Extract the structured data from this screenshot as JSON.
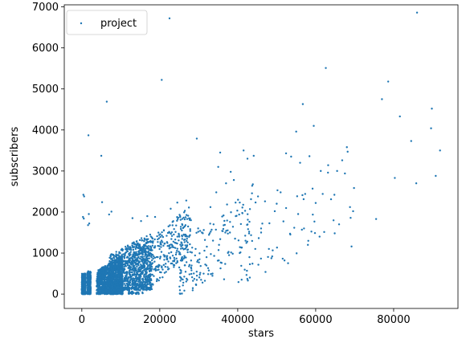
{
  "chart_data": {
    "type": "scatter",
    "title": "",
    "xlabel": "stars",
    "ylabel": "subscribers",
    "xlim": [
      -4500,
      96500
    ],
    "ylim": [
      -350,
      7050
    ],
    "xticks": [
      0,
      20000,
      40000,
      60000,
      80000
    ],
    "yticks": [
      0,
      1000,
      2000,
      3000,
      4000,
      5000,
      6000,
      7000
    ],
    "grid": false,
    "legend": {
      "position": "top-left"
    },
    "series": [
      {
        "name": "project",
        "color": "#1f77b4",
        "marker_size": 1.5,
        "points": [
          {
            "x": 400,
            "y": 2420
          },
          {
            "x": 600,
            "y": 2380
          },
          {
            "x": 300,
            "y": 1880
          },
          {
            "x": 500,
            "y": 1840
          },
          {
            "x": 1700,
            "y": 3870
          },
          {
            "x": 1800,
            "y": 1950
          },
          {
            "x": 1600,
            "y": 1680
          },
          {
            "x": 1900,
            "y": 1720
          },
          {
            "x": 5000,
            "y": 3370
          },
          {
            "x": 5200,
            "y": 2240
          },
          {
            "x": 6400,
            "y": 4690
          },
          {
            "x": 7000,
            "y": 1940
          },
          {
            "x": 7600,
            "y": 2010
          },
          {
            "x": 13000,
            "y": 1850
          },
          {
            "x": 15200,
            "y": 1780
          },
          {
            "x": 16800,
            "y": 1900
          },
          {
            "x": 18800,
            "y": 1880
          },
          {
            "x": 20500,
            "y": 5220
          },
          {
            "x": 22500,
            "y": 6720
          },
          {
            "x": 22800,
            "y": 2080
          },
          {
            "x": 24500,
            "y": 2230
          },
          {
            "x": 26800,
            "y": 2280
          },
          {
            "x": 29500,
            "y": 3790
          },
          {
            "x": 33000,
            "y": 2120
          },
          {
            "x": 34500,
            "y": 2480
          },
          {
            "x": 35500,
            "y": 3450
          },
          {
            "x": 35000,
            "y": 3100
          },
          {
            "x": 37000,
            "y": 2700
          },
          {
            "x": 38200,
            "y": 2980
          },
          {
            "x": 39000,
            "y": 2780
          },
          {
            "x": 41500,
            "y": 3500
          },
          {
            "x": 42500,
            "y": 3300
          },
          {
            "x": 43700,
            "y": 2640
          },
          {
            "x": 44100,
            "y": 3370
          },
          {
            "x": 45200,
            "y": 2380
          },
          {
            "x": 47000,
            "y": 2260
          },
          {
            "x": 49500,
            "y": 2020
          },
          {
            "x": 50200,
            "y": 2530
          },
          {
            "x": 51000,
            "y": 2480
          },
          {
            "x": 52400,
            "y": 3430
          },
          {
            "x": 53700,
            "y": 3350
          },
          {
            "x": 55000,
            "y": 3960
          },
          {
            "x": 56000,
            "y": 3200
          },
          {
            "x": 56700,
            "y": 4630
          },
          {
            "x": 57300,
            "y": 2440
          },
          {
            "x": 58400,
            "y": 3360
          },
          {
            "x": 59500,
            "y": 4100
          },
          {
            "x": 60000,
            "y": 2220
          },
          {
            "x": 61300,
            "y": 3000
          },
          {
            "x": 61800,
            "y": 2440
          },
          {
            "x": 62600,
            "y": 5510
          },
          {
            "x": 63200,
            "y": 3140
          },
          {
            "x": 64800,
            "y": 2420
          },
          {
            "x": 65500,
            "y": 3000
          },
          {
            "x": 66800,
            "y": 3260
          },
          {
            "x": 67500,
            "y": 2940
          },
          {
            "x": 68000,
            "y": 3580
          },
          {
            "x": 68200,
            "y": 3470
          },
          {
            "x": 68800,
            "y": 2120
          },
          {
            "x": 69200,
            "y": 1160
          },
          {
            "x": 69600,
            "y": 2020
          },
          {
            "x": 75500,
            "y": 1830
          },
          {
            "x": 77000,
            "y": 4750
          },
          {
            "x": 78600,
            "y": 5180
          },
          {
            "x": 80300,
            "y": 2830
          },
          {
            "x": 81600,
            "y": 4330
          },
          {
            "x": 84500,
            "y": 3730
          },
          {
            "x": 85800,
            "y": 2700
          },
          {
            "x": 86000,
            "y": 6860
          },
          {
            "x": 89600,
            "y": 4040
          },
          {
            "x": 89800,
            "y": 4520
          },
          {
            "x": 90800,
            "y": 2880
          },
          {
            "x": 91900,
            "y": 3500
          },
          {
            "x": 66000,
            "y": 1700
          },
          {
            "x": 61000,
            "y": 1400
          },
          {
            "x": 58000,
            "y": 1200
          },
          {
            "x": 57000,
            "y": 1600
          },
          {
            "x": 55500,
            "y": 1950
          },
          {
            "x": 53500,
            "y": 1450
          },
          {
            "x": 52000,
            "y": 820
          },
          {
            "x": 48000,
            "y": 1100
          },
          {
            "x": 46000,
            "y": 1500
          },
          {
            "x": 44500,
            "y": 1100
          },
          {
            "x": 43000,
            "y": 900
          },
          {
            "x": 42600,
            "y": 330
          },
          {
            "x": 42000,
            "y": 1300
          },
          {
            "x": 40500,
            "y": 1000
          },
          {
            "x": 39500,
            "y": 1900
          },
          {
            "x": 38000,
            "y": 1500
          },
          {
            "x": 36500,
            "y": 360
          },
          {
            "x": 35200,
            "y": 1200
          },
          {
            "x": 33800,
            "y": 1700
          },
          {
            "x": 32000,
            "y": 900
          },
          {
            "x": 30800,
            "y": 1500
          },
          {
            "x": 29200,
            "y": 1100
          },
          {
            "x": 28000,
            "y": 1800
          },
          {
            "x": 26400,
            "y": 700
          },
          {
            "x": 25000,
            "y": 1400
          }
        ],
        "clusters": [
          {
            "x_min": 0,
            "x_max": 1000,
            "y_min": 0,
            "y_max": 500,
            "count": 420,
            "spread": "uniform"
          },
          {
            "x_min": 1400,
            "x_max": 2300,
            "y_min": 0,
            "y_max": 560,
            "count": 260,
            "spread": "uniform"
          },
          {
            "x_min": 3800,
            "x_max": 10500,
            "y_min": 0,
            "y_max": 950,
            "count": 1200,
            "spread": "dense"
          },
          {
            "x_min": 7000,
            "x_max": 18000,
            "y_min": 100,
            "y_max": 1500,
            "count": 900,
            "spread": "dense"
          },
          {
            "x_min": 12000,
            "x_max": 28000,
            "y_min": 300,
            "y_max": 2000,
            "count": 450,
            "spread": "trend"
          },
          {
            "x_min": 25000,
            "x_max": 45000,
            "y_min": 500,
            "y_max": 2600,
            "count": 160,
            "spread": "trend"
          },
          {
            "x_min": 40000,
            "x_max": 70000,
            "y_min": 800,
            "y_max": 3200,
            "count": 50,
            "spread": "trend"
          }
        ]
      }
    ]
  }
}
